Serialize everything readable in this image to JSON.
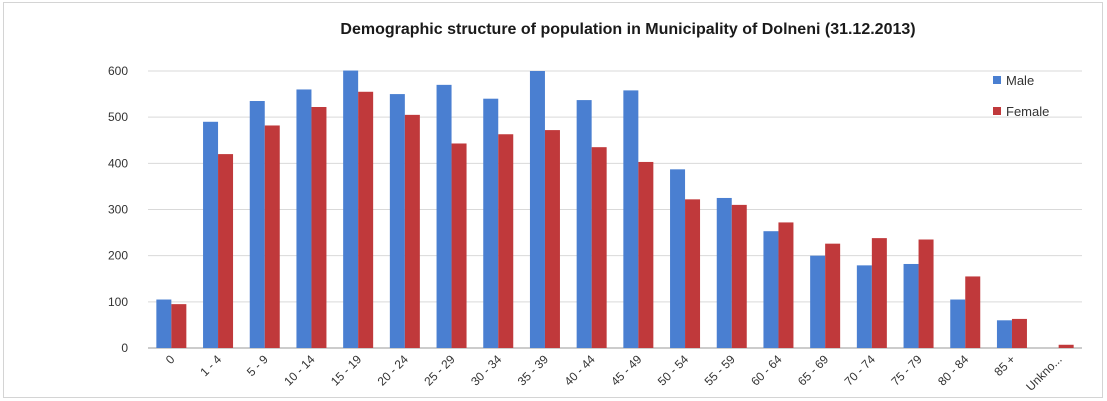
{
  "chart_data": {
    "type": "bar",
    "title": "Demographic structure of population in Municipality of Dolneni (31.12.2013)",
    "xlabel": "",
    "ylabel": "",
    "categories": [
      "0",
      "1 - 4",
      "5 - 9",
      "10 - 14",
      "15 - 19",
      "20 - 24",
      "25 - 29",
      "30 - 34",
      "35 - 39",
      "40 - 44",
      "45 - 49",
      "50 - 54",
      "55 - 59",
      "60 - 64",
      "65 - 69",
      "70 - 74",
      "75 - 79",
      "80 - 84",
      "85 +",
      "Unkno..."
    ],
    "series": [
      {
        "name": "Male",
        "color": "#4a7fd1",
        "values": [
          105,
          490,
          535,
          560,
          601,
          550,
          570,
          540,
          600,
          537,
          558,
          387,
          325,
          253,
          200,
          179,
          182,
          105,
          60,
          0
        ]
      },
      {
        "name": "Female",
        "color": "#c0393b",
        "values": [
          95,
          420,
          482,
          522,
          555,
          505,
          443,
          463,
          472,
          435,
          403,
          322,
          310,
          272,
          226,
          238,
          235,
          155,
          63,
          7
        ]
      }
    ],
    "yticks": [
      0,
      100,
      200,
      300,
      400,
      500,
      600
    ],
    "ylim": [
      0,
      600
    ],
    "grid": true,
    "legend": "top-right"
  }
}
